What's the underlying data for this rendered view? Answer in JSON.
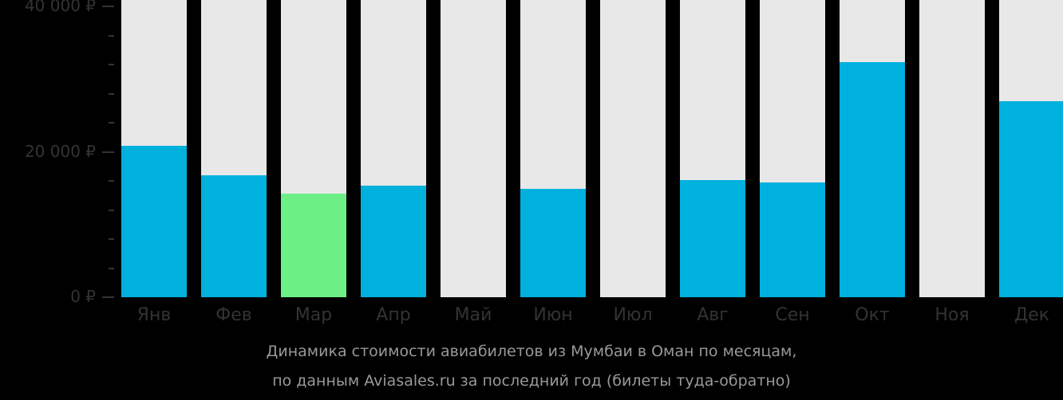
{
  "chart_data": {
    "type": "bar",
    "title": "Динамика стоимости авиабилетов из Мумбаи в Оман по месяцам, по данным Aviasales.ru за последний год (билеты туда-обратно)",
    "xlabel": "",
    "ylabel": "",
    "ylim": [
      0,
      40000
    ],
    "yticks": [
      "0 ₽",
      "20 000 ₽",
      "40 000 ₽"
    ],
    "categories": [
      "Янв",
      "Фев",
      "Мар",
      "Апр",
      "Май",
      "Июн",
      "Июл",
      "Авг",
      "Сен",
      "Окт",
      "Ноя",
      "Дек"
    ],
    "values": [
      20800,
      16800,
      14200,
      15300,
      null,
      14900,
      null,
      16100,
      15800,
      32300,
      null,
      27000
    ],
    "highlight_index": 2,
    "colors": {
      "bar": "#00b0dd",
      "cheapest": "#6cf085",
      "background_column": "#e8e8e8",
      "page_bg": "#000000",
      "axis_text": "#333333"
    },
    "grid": false,
    "legend": null
  },
  "caption": {
    "line1": "Динамика стоимости авиабилетов из Мумбаи в Оман по месяцам,",
    "line2": "по данным Aviasales.ru за последний год (билеты туда-обратно)"
  }
}
